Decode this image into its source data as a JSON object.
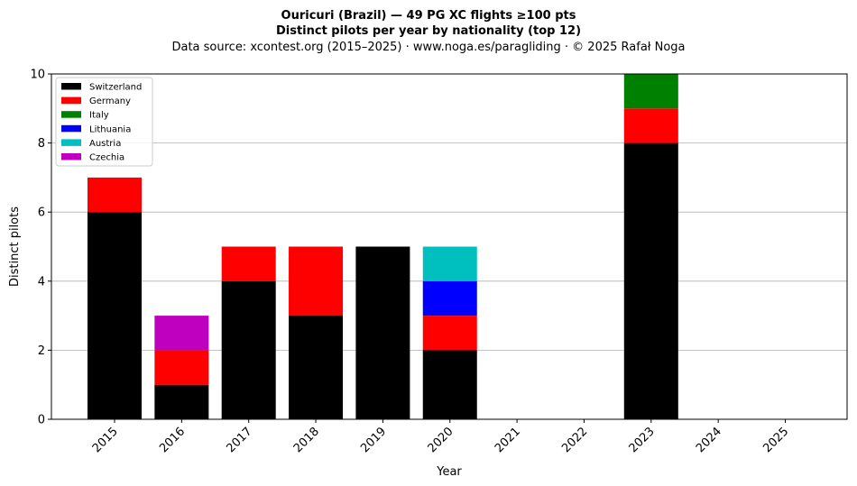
{
  "chart_data": {
    "type": "bar",
    "stacked": true,
    "title": "Ouricuri (Brazil)  —  49 PG XC flights ≥100 pts",
    "subtitle": "Distinct pilots per year by nationality (top 12)",
    "source": "Data source: xcontest.org (2015–2025)  ·  www.noga.es/paragliding  ·  © 2025 Rafał Noga",
    "xlabel": "Year",
    "ylabel": "Distinct pilots",
    "ylim": [
      0,
      10
    ],
    "yticks": [
      0,
      2,
      4,
      6,
      8,
      10
    ],
    "grid": "y",
    "legend_position": "top-left",
    "categories": [
      "2015",
      "2016",
      "2017",
      "2018",
      "2019",
      "2020",
      "2021",
      "2022",
      "2023",
      "2024",
      "2025"
    ],
    "series": [
      {
        "name": "Switzerland",
        "color": "#000000",
        "values": [
          6,
          1,
          4,
          3,
          5,
          2,
          0,
          0,
          8,
          0,
          0
        ]
      },
      {
        "name": "Germany",
        "color": "#ff0000",
        "values": [
          1,
          1,
          1,
          2,
          0,
          1,
          0,
          0,
          1,
          0,
          0
        ]
      },
      {
        "name": "Italy",
        "color": "#008000",
        "values": [
          0,
          0,
          0,
          0,
          0,
          0,
          0,
          0,
          1,
          0,
          0
        ]
      },
      {
        "name": "Lithuania",
        "color": "#0000ff",
        "values": [
          0,
          0,
          0,
          0,
          0,
          1,
          0,
          0,
          0,
          0,
          0
        ]
      },
      {
        "name": "Austria",
        "color": "#00bfbf",
        "values": [
          0,
          0,
          0,
          0,
          0,
          1,
          0,
          0,
          0,
          0,
          0
        ]
      },
      {
        "name": "Czechia",
        "color": "#bf00bf",
        "values": [
          0,
          1,
          0,
          0,
          0,
          0,
          0,
          0,
          0,
          0,
          0
        ]
      }
    ]
  }
}
